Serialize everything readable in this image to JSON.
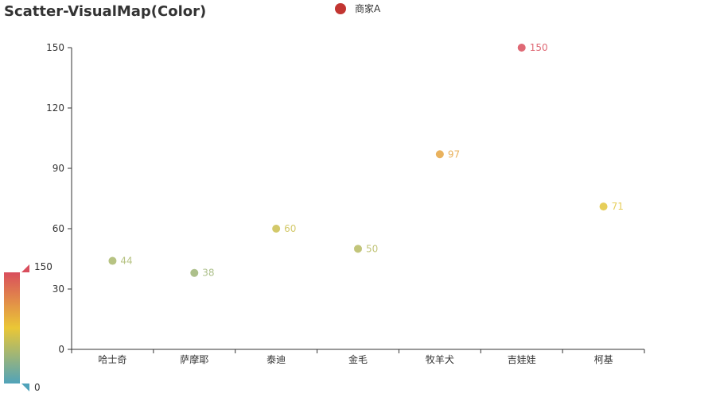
{
  "chart_data": {
    "type": "scatter",
    "title": "Scatter-VisualMap(Color)",
    "categories": [
      "哈士奇",
      "萨摩耶",
      "泰迪",
      "金毛",
      "牧羊犬",
      "吉娃娃",
      "柯基"
    ],
    "series": [
      {
        "name": "商家A",
        "values": [
          44,
          38,
          60,
          50,
          97,
          150,
          71
        ],
        "legend_color": "#c23531"
      }
    ],
    "ylim": [
      0,
      150
    ],
    "yticks": [
      0,
      30,
      60,
      90,
      120,
      150
    ],
    "grid": false,
    "legend_position": "top-center",
    "visual_map": {
      "min": 0,
      "max": 150,
      "min_label": "0",
      "max_label": "150",
      "colors": [
        "#50a3ba",
        "#eac736",
        "#d94e5d"
      ],
      "position": "bottom-left"
    }
  }
}
